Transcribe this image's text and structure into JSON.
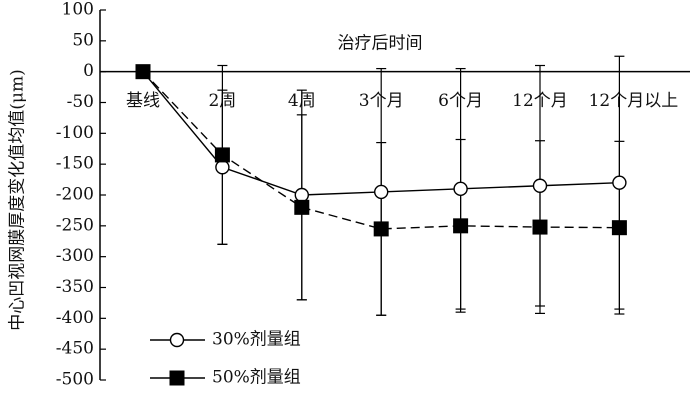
{
  "chart_data": {
    "type": "line",
    "y_label": "中心凹视网膜厚度变化值均值(μm)",
    "x_label": "治疗后时间",
    "categories": [
      "基线",
      "2周",
      "4周",
      "3个月",
      "6个月",
      "12个月",
      "12个月以上"
    ],
    "series": [
      {
        "name": "30%剂量组",
        "color": "#000000",
        "marker": "circle",
        "dashed": false,
        "values": [
          0,
          -155,
          -200,
          -195,
          -190,
          -185,
          -180
        ],
        "errors": [
          0,
          125,
          170,
          200,
          195,
          195,
          205
        ]
      },
      {
        "name": "50%剂量组",
        "color": "#000000",
        "marker": "square",
        "dashed": true,
        "values": [
          0,
          -135,
          -220,
          -255,
          -250,
          -252,
          -253
        ],
        "errors": [
          0,
          145,
          150,
          140,
          140,
          140,
          140
        ]
      }
    ],
    "ylim": [
      -500,
      100
    ],
    "yticks": [
      -500,
      -450,
      -400,
      -350,
      -300,
      -250,
      -200,
      -150,
      -100,
      -50,
      0,
      50,
      100
    ],
    "legend": "lower left"
  }
}
